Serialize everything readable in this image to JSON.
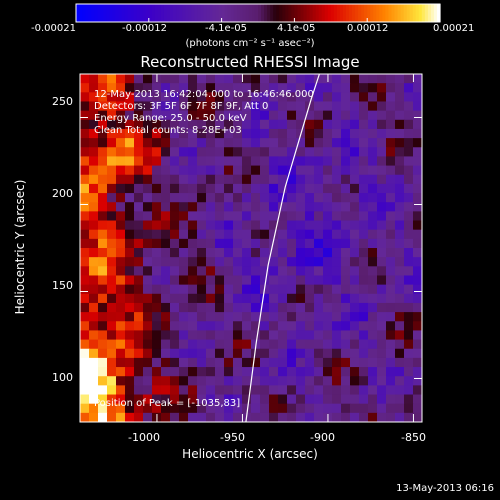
{
  "colorbar": {
    "tick_labels": [
      "-0.00021",
      "-0.00012",
      "-4.1e-05",
      "4.1e-05",
      "0.00012",
      "0.00021"
    ],
    "units": "(photons cm⁻² s⁻¹ asec⁻²)",
    "min": -0.00021,
    "max": 0.00021
  },
  "plot": {
    "title": "Reconstructed RHESSI Image",
    "info_lines": [
      "12-May-2013 16:42:04.000 to 16:46:46.000",
      "Detectors: 3F 5F 6F 7F 8F 9F, Att 0",
      "Energy Range: 25.0 - 50.0 keV",
      "Clean     Total counts: 8.28E+03"
    ],
    "peak_text": "Position of Peak = [-1035,83]",
    "xlabel": "Heliocentric X (arcsec)",
    "ylabel": "Heliocentric Y (arcsec)",
    "x_ticks": [
      "-1000",
      "-950",
      "-900",
      "-850"
    ],
    "y_ticks": [
      "250",
      "200",
      "150",
      "100"
    ],
    "footer_date": "13-May-2013 06:16"
  },
  "chart_data": {
    "type": "heatmap",
    "title": "Reconstructed RHESSI Image",
    "xlabel": "Heliocentric X (arcsec)",
    "ylabel": "Heliocentric Y (arcsec)",
    "xlim": [
      -1045,
      -845
    ],
    "ylim": [
      75,
      275
    ],
    "x_ticks": [
      -1000,
      -950,
      -900,
      -850
    ],
    "y_ticks": [
      100,
      150,
      200,
      250
    ],
    "colorbar_range": [
      -0.00021,
      0.00021
    ],
    "peak_position": [
      -1035,
      83
    ],
    "limb_curve": [
      [
        -948,
        75
      ],
      [
        -942,
        120
      ],
      [
        -935,
        165
      ],
      [
        -925,
        210
      ],
      [
        -910,
        260
      ],
      [
        -905,
        275
      ]
    ]
  }
}
